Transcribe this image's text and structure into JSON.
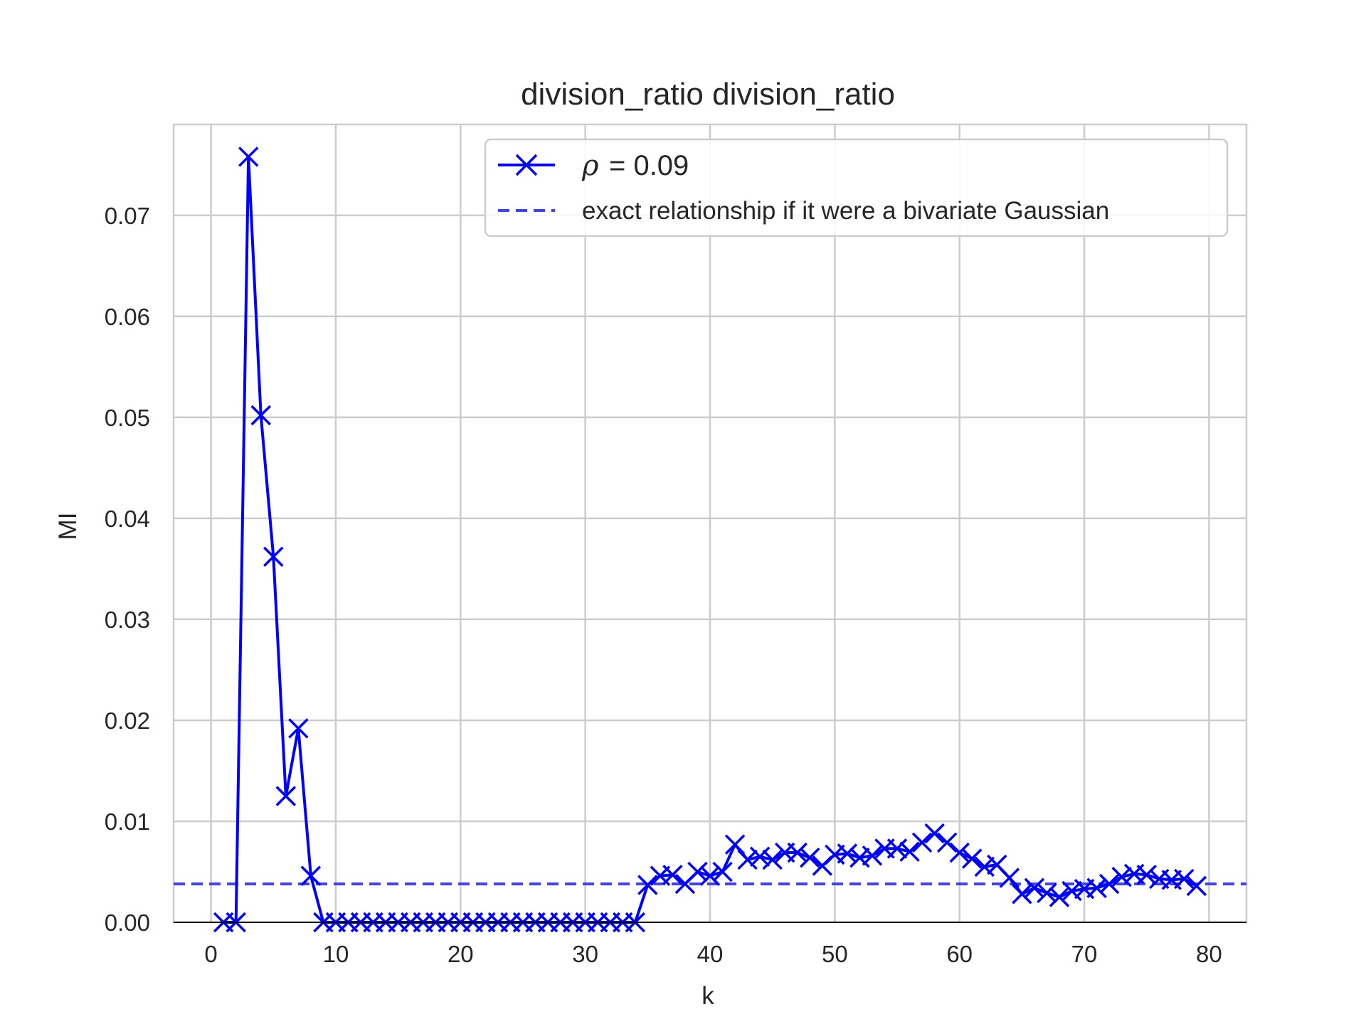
{
  "chart_data": {
    "type": "line",
    "title": "division_ratio division_ratio",
    "xlabel": "k",
    "ylabel": "MI",
    "xlim": [
      -3,
      83
    ],
    "ylim": [
      0,
      0.079
    ],
    "xticks": [
      0,
      10,
      20,
      30,
      40,
      50,
      60,
      70,
      80
    ],
    "yticks": [
      0.0,
      0.01,
      0.02,
      0.03,
      0.04,
      0.05,
      0.06,
      0.07
    ],
    "ytick_labels": [
      "0.00",
      "0.01",
      "0.02",
      "0.03",
      "0.04",
      "0.05",
      "0.06",
      "0.07"
    ],
    "xtick_labels": [
      "0",
      "10",
      "20",
      "30",
      "40",
      "50",
      "60",
      "70",
      "80"
    ],
    "grid": true,
    "legend_position": "top-right",
    "series": [
      {
        "name": "ρ = 0.09",
        "name_symbol": "ρ",
        "name_value": "= 0.09",
        "style": "solid line with x markers",
        "color": "#0000ff",
        "x": [
          1,
          2,
          3,
          4,
          5,
          6,
          7,
          8,
          9,
          10,
          11,
          12,
          13,
          14,
          15,
          16,
          17,
          18,
          19,
          20,
          21,
          22,
          23,
          24,
          25,
          26,
          27,
          28,
          29,
          30,
          31,
          32,
          33,
          34,
          35,
          36,
          37,
          38,
          39,
          40,
          41,
          42,
          43,
          44,
          45,
          46,
          47,
          48,
          49,
          50,
          51,
          52,
          53,
          54,
          55,
          56,
          57,
          58,
          59,
          60,
          61,
          62,
          63,
          64,
          65,
          66,
          67,
          68,
          69,
          70,
          71,
          72,
          73,
          74,
          75,
          76,
          77,
          78,
          79
        ],
        "y": [
          0.0,
          0.0,
          0.0758,
          0.0502,
          0.0362,
          0.0125,
          0.0192,
          0.0046,
          0.0,
          0.0,
          0.0,
          0.0,
          0.0,
          0.0,
          0.0,
          0.0,
          0.0,
          0.0,
          0.0,
          0.0,
          0.0,
          0.0,
          0.0,
          0.0,
          0.0,
          0.0,
          0.0,
          0.0,
          0.0,
          0.0,
          0.0,
          0.0,
          0.0,
          0.0,
          0.0037,
          0.0046,
          0.0047,
          0.0038,
          0.005,
          0.0046,
          0.005,
          0.0077,
          0.0062,
          0.0065,
          0.0062,
          0.0069,
          0.0069,
          0.0064,
          0.0056,
          0.0067,
          0.0068,
          0.0064,
          0.0066,
          0.0073,
          0.0073,
          0.007,
          0.0079,
          0.0088,
          0.0079,
          0.0069,
          0.0063,
          0.0055,
          0.0057,
          0.0044,
          0.0028,
          0.0034,
          0.0029,
          0.0025,
          0.0031,
          0.0033,
          0.0034,
          0.0038,
          0.0045,
          0.0048,
          0.0047,
          0.0043,
          0.0042,
          0.0043,
          0.0036
        ]
      },
      {
        "name": "exact relationship if it were a bivariate Gaussian",
        "style": "dashed horizontal line",
        "color": "#4040ff",
        "y_constant": 0.0038
      }
    ]
  }
}
